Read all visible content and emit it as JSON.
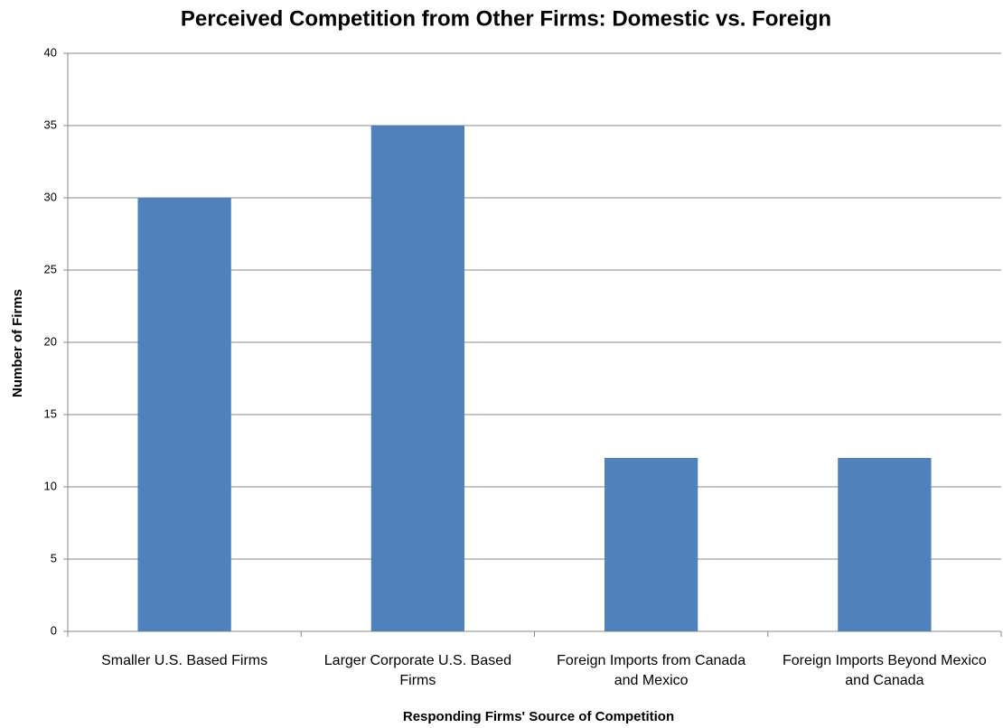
{
  "chart_data": {
    "type": "bar",
    "title": "Perceived Competition from Other Firms: Domestic vs. Foreign",
    "x_label": "Responding Firms' Source of Competition",
    "y_label": "Number of Firms",
    "categories": [
      "Smaller U.S. Based Firms",
      "Larger Corporate U.S. Based Firms",
      "Foreign Imports from Canada and Mexico",
      "Foreign Imports Beyond Mexico and Canada"
    ],
    "values": [
      30,
      35,
      12,
      12
    ],
    "color": "#4f81bd",
    "ylim": [
      0,
      40
    ],
    "yticks": [
      0,
      5,
      10,
      15,
      20,
      25,
      30,
      35,
      40
    ],
    "grid": true
  }
}
